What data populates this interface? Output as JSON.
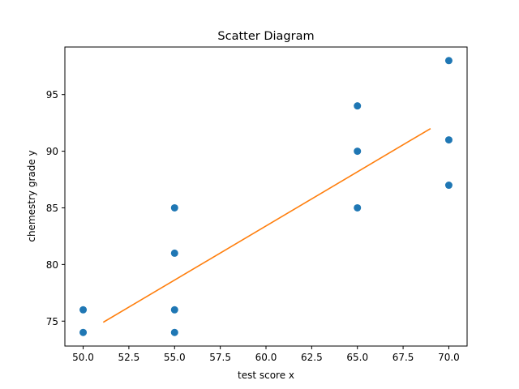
{
  "chart_data": {
    "type": "scatter",
    "title": "Scatter Diagram",
    "xlabel": "test score x",
    "ylabel": "chemestry grade y",
    "xlim": [
      49.0,
      71.0
    ],
    "ylim": [
      72.8,
      99.2
    ],
    "xticks": [
      50.0,
      52.5,
      55.0,
      57.5,
      60.0,
      62.5,
      65.0,
      67.5,
      70.0
    ],
    "xtick_labels": [
      "50.0",
      "52.5",
      "55.0",
      "57.5",
      "60.0",
      "62.5",
      "65.0",
      "67.5",
      "70.0"
    ],
    "yticks": [
      75,
      80,
      85,
      90,
      95
    ],
    "ytick_labels": [
      "75",
      "80",
      "85",
      "90",
      "95"
    ],
    "grid": false,
    "series": [
      {
        "type": "scatter",
        "color": "#1f77b4",
        "points": [
          [
            50,
            76
          ],
          [
            50,
            74
          ],
          [
            55,
            85
          ],
          [
            55,
            81
          ],
          [
            55,
            76
          ],
          [
            55,
            74
          ],
          [
            65,
            94
          ],
          [
            65,
            90
          ],
          [
            65,
            85
          ],
          [
            70,
            98
          ],
          [
            70,
            91
          ],
          [
            70,
            87
          ]
        ]
      },
      {
        "type": "line",
        "color": "#ff7f0e",
        "points": [
          [
            51.1,
            74.9
          ],
          [
            69.0,
            92.0
          ]
        ]
      }
    ]
  }
}
